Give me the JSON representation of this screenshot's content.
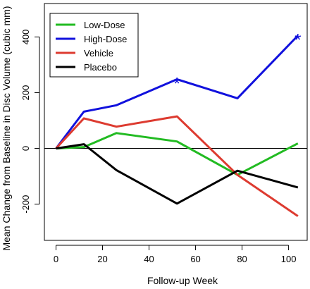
{
  "chart_data": {
    "type": "line",
    "title": "",
    "xlabel": "Follow-up Week",
    "ylabel": "Mean Change from Baseline in Disc Volume (cubic mm)",
    "xlim": [
      -5,
      108
    ],
    "ylim": [
      -330,
      520
    ],
    "x_ticks": [
      "0",
      "20",
      "40",
      "60",
      "80",
      "100"
    ],
    "y_ticks": [
      "-200",
      "0",
      "200",
      "400"
    ],
    "x": [
      0,
      12,
      26,
      52,
      78,
      104
    ],
    "reference_line_y": 0,
    "legend_position": "top-left",
    "series": [
      {
        "name": "Low-Dose",
        "color": "#22bb22",
        "values": [
          0,
          5,
          55,
          25,
          -95,
          18
        ]
      },
      {
        "name": "High-Dose",
        "color": "#1111dd",
        "values": [
          0,
          132,
          155,
          248,
          180,
          405
        ]
      },
      {
        "name": "Vehicle",
        "color": "#dd3b30",
        "values": [
          0,
          108,
          78,
          115,
          -95,
          -243
        ]
      },
      {
        "name": "Placebo",
        "color": "#000000",
        "values": [
          0,
          15,
          -78,
          -198,
          -80,
          -140
        ]
      }
    ],
    "annotations": [
      {
        "text": "*",
        "x": 52,
        "y": 248,
        "color": "#1111dd"
      },
      {
        "text": "*",
        "x": 104,
        "y": 405,
        "color": "#1111dd"
      }
    ]
  }
}
